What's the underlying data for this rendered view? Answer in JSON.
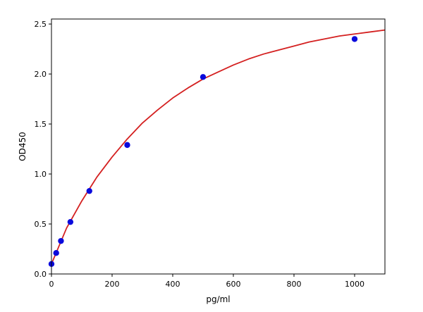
{
  "chart_data": {
    "type": "scatter",
    "xlabel": "pg/ml",
    "ylabel": "OD450",
    "xlim": [
      0,
      1100
    ],
    "ylim": [
      0,
      2.55
    ],
    "xticks": [
      0,
      200,
      400,
      600,
      800,
      1000
    ],
    "yticks": [
      0.0,
      0.5,
      1.0,
      1.5,
      2.0,
      2.5
    ],
    "xtick_labels": [
      "0",
      "200",
      "400",
      "600",
      "800",
      "1000"
    ],
    "ytick_labels": [
      "0.0",
      "0.5",
      "1.0",
      "1.5",
      "2.0",
      "2.5"
    ],
    "grid": false,
    "legend": "none",
    "series": [
      {
        "kind": "points",
        "color": "#0a0adc",
        "x": [
          0,
          15.6,
          31.25,
          62.5,
          125,
          250,
          500,
          1000
        ],
        "y": [
          0.1,
          0.21,
          0.33,
          0.52,
          0.83,
          1.29,
          1.97,
          2.35
        ]
      },
      {
        "kind": "fitted-curve",
        "color": "#d42020",
        "x": [
          0,
          50,
          100,
          150,
          200,
          250,
          300,
          350,
          400,
          450,
          500,
          550,
          600,
          650,
          700,
          750,
          800,
          850,
          900,
          950,
          1000,
          1050,
          1100
        ],
        "y": [
          0.1,
          0.46,
          0.73,
          0.97,
          1.17,
          1.35,
          1.51,
          1.64,
          1.76,
          1.86,
          1.95,
          2.02,
          2.09,
          2.15,
          2.2,
          2.24,
          2.28,
          2.32,
          2.35,
          2.38,
          2.4,
          2.42,
          2.44
        ]
      }
    ]
  }
}
